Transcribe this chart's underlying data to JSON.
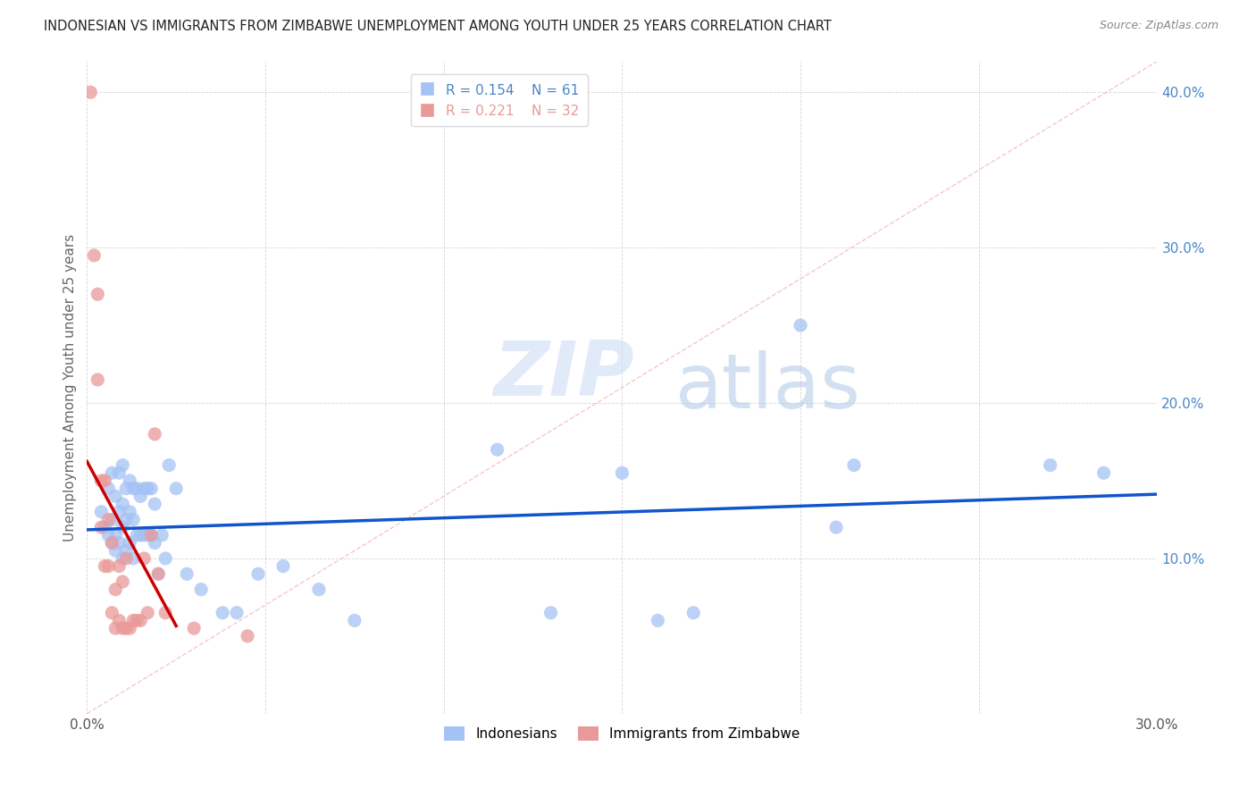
{
  "title": "INDONESIAN VS IMMIGRANTS FROM ZIMBABWE UNEMPLOYMENT AMONG YOUTH UNDER 25 YEARS CORRELATION CHART",
  "source": "Source: ZipAtlas.com",
  "ylabel": "Unemployment Among Youth under 25 years",
  "xlim": [
    0,
    0.3
  ],
  "ylim": [
    0,
    0.42
  ],
  "xticks": [
    0.0,
    0.05,
    0.1,
    0.15,
    0.2,
    0.25,
    0.3
  ],
  "xtick_labels": [
    "0.0%",
    "",
    "",
    "",
    "",
    "",
    "30.0%"
  ],
  "yticks": [
    0.0,
    0.1,
    0.2,
    0.3,
    0.4
  ],
  "ytick_labels": [
    "",
    "10.0%",
    "20.0%",
    "30.0%",
    "40.0%"
  ],
  "legend_R_blue": "0.154",
  "legend_N_blue": "61",
  "legend_R_pink": "0.221",
  "legend_N_pink": "32",
  "blue_color": "#a4c2f4",
  "pink_color": "#ea9999",
  "blue_line_color": "#1155cc",
  "pink_line_color": "#cc0000",
  "diag_line_color": "#f4b8c1",
  "watermark_zip": "ZIP",
  "watermark_atlas": "atlas",
  "indonesian_x": [
    0.004,
    0.005,
    0.006,
    0.006,
    0.007,
    0.007,
    0.007,
    0.008,
    0.008,
    0.008,
    0.009,
    0.009,
    0.009,
    0.01,
    0.01,
    0.01,
    0.01,
    0.011,
    0.011,
    0.011,
    0.012,
    0.012,
    0.012,
    0.013,
    0.013,
    0.013,
    0.014,
    0.014,
    0.015,
    0.015,
    0.016,
    0.016,
    0.017,
    0.017,
    0.018,
    0.018,
    0.019,
    0.019,
    0.02,
    0.021,
    0.022,
    0.023,
    0.025,
    0.028,
    0.032,
    0.038,
    0.042,
    0.048,
    0.055,
    0.065,
    0.075,
    0.115,
    0.13,
    0.15,
    0.16,
    0.17,
    0.2,
    0.21,
    0.215,
    0.27,
    0.285
  ],
  "indonesian_y": [
    0.13,
    0.12,
    0.145,
    0.115,
    0.155,
    0.125,
    0.11,
    0.14,
    0.115,
    0.105,
    0.155,
    0.13,
    0.11,
    0.16,
    0.135,
    0.12,
    0.1,
    0.145,
    0.125,
    0.105,
    0.15,
    0.13,
    0.11,
    0.145,
    0.125,
    0.1,
    0.145,
    0.115,
    0.14,
    0.115,
    0.145,
    0.115,
    0.145,
    0.115,
    0.145,
    0.115,
    0.135,
    0.11,
    0.09,
    0.115,
    0.1,
    0.16,
    0.145,
    0.09,
    0.08,
    0.065,
    0.065,
    0.09,
    0.095,
    0.08,
    0.06,
    0.17,
    0.065,
    0.155,
    0.06,
    0.065,
    0.25,
    0.12,
    0.16,
    0.16,
    0.155
  ],
  "zimbabwe_x": [
    0.001,
    0.002,
    0.003,
    0.003,
    0.004,
    0.004,
    0.005,
    0.005,
    0.006,
    0.006,
    0.007,
    0.007,
    0.008,
    0.008,
    0.009,
    0.009,
    0.01,
    0.01,
    0.011,
    0.011,
    0.012,
    0.013,
    0.014,
    0.015,
    0.016,
    0.017,
    0.018,
    0.019,
    0.02,
    0.022,
    0.03,
    0.045
  ],
  "zimbabwe_y": [
    0.4,
    0.295,
    0.215,
    0.27,
    0.12,
    0.15,
    0.095,
    0.15,
    0.095,
    0.125,
    0.065,
    0.11,
    0.055,
    0.08,
    0.06,
    0.095,
    0.055,
    0.085,
    0.055,
    0.1,
    0.055,
    0.06,
    0.06,
    0.06,
    0.1,
    0.065,
    0.115,
    0.18,
    0.09,
    0.065,
    0.055,
    0.05
  ]
}
